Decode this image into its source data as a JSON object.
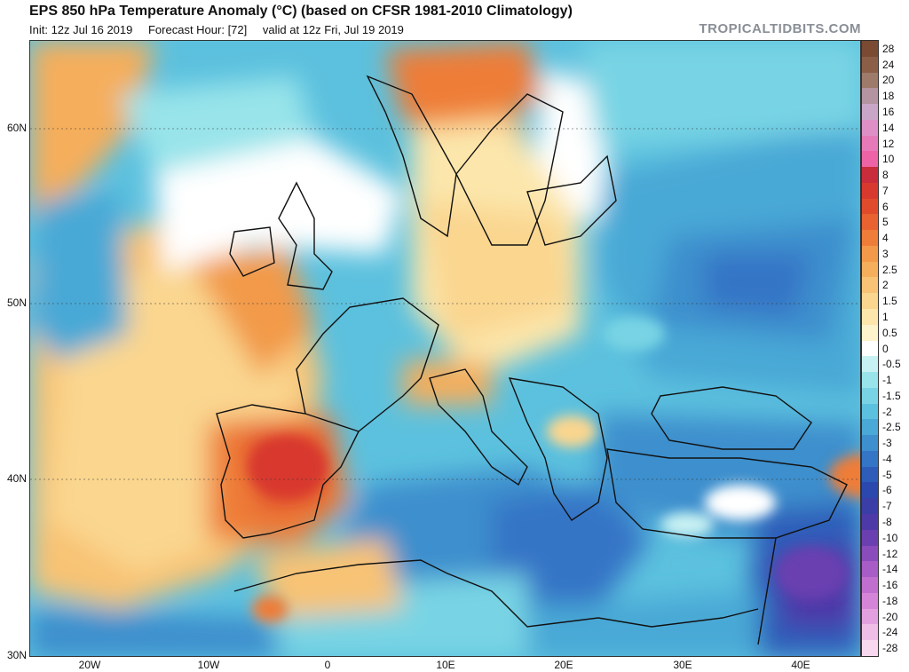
{
  "header": {
    "title": "EPS 850 hPa Temperature Anomaly (°C) (based on CFSR 1981-2010 Climatology)",
    "init": "Init: 12z Jul 16 2019",
    "forecast_hour": "Forecast Hour: [72]",
    "valid": "valid at 12z Fri, Jul 19 2019",
    "brand": "TROPICALTIDBITS.COM"
  },
  "axes": {
    "lat_labels": [
      "60N",
      "50N",
      "40N",
      "30N"
    ],
    "lon_labels": [
      "20W",
      "10W",
      "0",
      "10E",
      "20E",
      "30E",
      "40E"
    ]
  },
  "legend": {
    "labels": [
      "28",
      "24",
      "20",
      "18",
      "16",
      "14",
      "12",
      "10",
      "8",
      "7",
      "6",
      "5",
      "4",
      "3",
      "2.5",
      "2",
      "1.5",
      "1",
      "0.5",
      "0",
      "-0.5",
      "-1",
      "-1.5",
      "-2",
      "-2.5",
      "-3",
      "-4",
      "-5",
      "-6",
      "-7",
      "-8",
      "-10",
      "-12",
      "-14",
      "-16",
      "-18",
      "-20",
      "-24",
      "-28"
    ],
    "colors": [
      "#7a4a33",
      "#8c5e48",
      "#9e7a6a",
      "#b394a0",
      "#c9a6c8",
      "#dd8fc6",
      "#e67ab8",
      "#ee63a6",
      "#c92c3a",
      "#d8392e",
      "#e04b2c",
      "#e8632f",
      "#ee7d39",
      "#f29a4a",
      "#f5ae5c",
      "#f8c374",
      "#fad68f",
      "#fce6ab",
      "#fdf3cc",
      "#ffffff",
      "#c8f1f3",
      "#98e4ea",
      "#78d4e4",
      "#5cc1de",
      "#4aa9d6",
      "#3d8fcd",
      "#3475c6",
      "#2d5db9",
      "#2a48ad",
      "#3a3ea6",
      "#4e39a8",
      "#6a3fb0",
      "#8a4bbb",
      "#a85cc5",
      "#c06fcf",
      "#d585d8",
      "#e3a0de",
      "#efbde5",
      "#f7d8ee"
    ]
  }
}
